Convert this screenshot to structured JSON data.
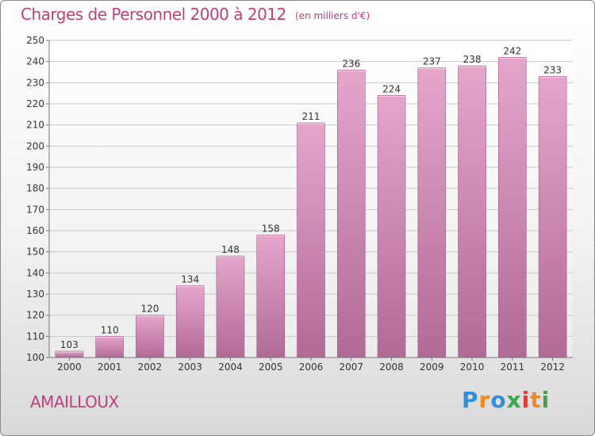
{
  "header": {
    "title": "Charges de Personnel 2000 à 2012",
    "subtitle": "(en milliers d'€)"
  },
  "footer": {
    "town": "AMAILLOUX",
    "logo": "Proxiti"
  },
  "colors": {
    "accent": "#c0407e",
    "bar_top": "#e6a6cc",
    "bar_bottom": "#b06a96"
  },
  "chart_data": {
    "type": "bar",
    "title": "Charges de Personnel 2000 à 2012",
    "subtitle": "(en milliers d'€)",
    "categories": [
      "2000",
      "2001",
      "2002",
      "2003",
      "2004",
      "2005",
      "2006",
      "2007",
      "2008",
      "2009",
      "2010",
      "2011",
      "2012"
    ],
    "values": [
      103,
      110,
      120,
      134,
      148,
      158,
      211,
      236,
      224,
      237,
      238,
      242,
      233
    ],
    "ylim": [
      100,
      250
    ],
    "yticks": [
      100,
      110,
      120,
      130,
      140,
      150,
      160,
      170,
      180,
      190,
      200,
      210,
      220,
      230,
      240,
      250
    ],
    "grid": true,
    "legend": "none"
  }
}
